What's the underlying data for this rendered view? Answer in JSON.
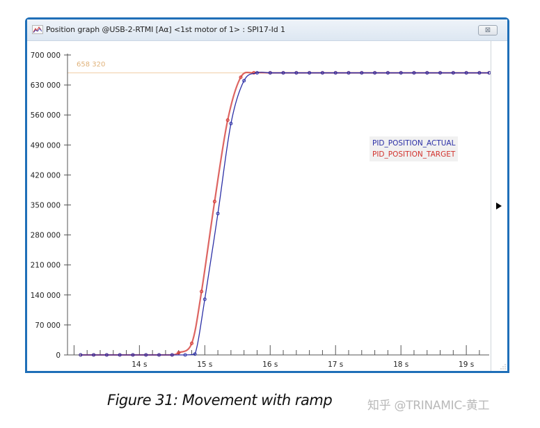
{
  "window": {
    "title": "Position graph @USB-2-RTMI [Aα] <1st motor of 1> : SPI17-Id 1",
    "close_label": "⊠",
    "icon": "graph-icon"
  },
  "legend": {
    "actual_label": "PID_POSITION_ACTUAL",
    "target_label": "PID_POSITION_TARGET"
  },
  "reference_line": {
    "label": "658 320",
    "value": 658320,
    "color": "#f3d2ae"
  },
  "caption": "Figure 31: Movement with ramp",
  "watermark": "知乎 @TRINAMIC-黄工",
  "colors": {
    "actual": "#2b2fa6",
    "target": "#d2322d",
    "window_border": "#1f6fb8",
    "axis": "#555555"
  },
  "chart_data": {
    "type": "line",
    "title": "Position graph @USB-2-RTMI [Aα] <1st motor of 1> : SPI17-Id 1",
    "xlabel": "",
    "ylabel": "",
    "xlim": [
      12.9,
      19.35
    ],
    "ylim": [
      0,
      700000
    ],
    "y_ticks": [
      "0",
      "70 000",
      "140 000",
      "210 000",
      "280 000",
      "350 000",
      "420 000",
      "490 000",
      "560 000",
      "630 000",
      "700 000"
    ],
    "y_tick_values": [
      0,
      70000,
      140000,
      210000,
      280000,
      350000,
      420000,
      490000,
      560000,
      630000,
      700000
    ],
    "x_ticks": [
      "14 s",
      "15 s",
      "16 s",
      "17 s",
      "18 s",
      "19 s"
    ],
    "x_tick_values": [
      14,
      15,
      16,
      17,
      18,
      19
    ],
    "legend_position": "right-upper",
    "grid": false,
    "annotations": [
      {
        "type": "hline",
        "y": 658320,
        "label": "658 320"
      }
    ],
    "series": [
      {
        "name": "PID_POSITION_ACTUAL",
        "color": "#2b2fa6",
        "x": [
          13.1,
          13.3,
          13.5,
          13.7,
          13.9,
          14.1,
          14.3,
          14.5,
          14.7,
          14.85,
          15.0,
          15.2,
          15.4,
          15.6,
          15.8,
          16.0,
          16.2,
          16.4,
          16.6,
          16.8,
          17.0,
          17.2,
          17.4,
          17.6,
          17.8,
          18.0,
          18.2,
          18.4,
          18.6,
          18.8,
          19.0,
          19.2,
          19.35
        ],
        "values": [
          0,
          0,
          0,
          0,
          0,
          0,
          0,
          0,
          0,
          2000,
          130000,
          330000,
          540000,
          640000,
          658320,
          658320,
          658320,
          658320,
          658320,
          658320,
          658320,
          658320,
          658320,
          658320,
          658320,
          658320,
          658320,
          658320,
          658320,
          658320,
          658320,
          658320,
          658320
        ]
      },
      {
        "name": "PID_POSITION_TARGET",
        "color": "#d2322d",
        "x": [
          13.1,
          13.3,
          13.5,
          13.7,
          13.9,
          14.1,
          14.3,
          14.5,
          14.6,
          14.8,
          14.95,
          15.15,
          15.35,
          15.55,
          15.75,
          16.0,
          16.2,
          16.4,
          16.6,
          16.8,
          17.0,
          17.2,
          17.4,
          17.6,
          17.8,
          18.0,
          18.2,
          18.4,
          18.6,
          18.8,
          19.0,
          19.2,
          19.35
        ],
        "values": [
          0,
          0,
          0,
          0,
          0,
          0,
          0,
          0,
          5000,
          27000,
          148000,
          358000,
          548000,
          648000,
          658320,
          658320,
          658320,
          658320,
          658320,
          658320,
          658320,
          658320,
          658320,
          658320,
          658320,
          658320,
          658320,
          658320,
          658320,
          658320,
          658320,
          658320,
          658320
        ]
      }
    ]
  }
}
